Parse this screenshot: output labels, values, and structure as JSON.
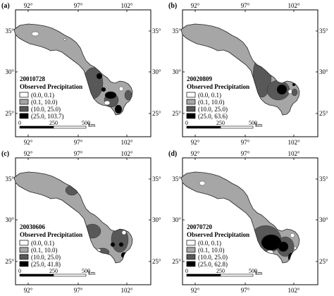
{
  "figure": {
    "panels": [
      {
        "letter": "(a)",
        "date": "20010728",
        "legend_title": "Observed Precipitation",
        "classes": [
          "(0.0, 0.1)",
          "(0.1, 10.0)",
          "(10.0, 25.0)",
          "(25.0, 103.7)"
        ],
        "class_colors": [
          "#ffffff",
          "#a6a6a6",
          "#585858",
          "#000000"
        ],
        "scale_labels": [
          "0",
          "250",
          "500"
        ],
        "scale_unit": "km",
        "lon_ticks": [
          "92°",
          "97°",
          "102°"
        ],
        "lat_ticks": [
          "35°",
          "30°",
          "25°"
        ],
        "background_class": 1,
        "patches": [
          {
            "c": 0,
            "x": 50,
            "y": 48,
            "rx": 5,
            "ry": 3
          },
          {
            "c": 0,
            "x": 92,
            "y": 56,
            "rx": 1.5,
            "ry": 1.5
          },
          {
            "c": 2,
            "x": 132,
            "y": 118,
            "rx": 14,
            "ry": 22
          },
          {
            "c": 2,
            "x": 158,
            "y": 142,
            "rx": 10,
            "ry": 10
          },
          {
            "c": 3,
            "x": 141,
            "y": 108,
            "rx": 4,
            "ry": 4
          },
          {
            "c": 3,
            "x": 157,
            "y": 135,
            "rx": 8,
            "ry": 5
          },
          {
            "c": 3,
            "x": 147,
            "y": 127,
            "rx": 3,
            "ry": 3
          },
          {
            "c": 3,
            "x": 168,
            "y": 155,
            "rx": 5,
            "ry": 6
          },
          {
            "c": 0,
            "x": 152,
            "y": 146,
            "rx": 4,
            "ry": 3
          },
          {
            "c": 0,
            "x": 172,
            "y": 126,
            "rx": 3,
            "ry": 3
          },
          {
            "c": 2,
            "x": 182,
            "y": 135,
            "rx": 5,
            "ry": 7
          }
        ]
      },
      {
        "letter": "(b)",
        "date": "20020809",
        "legend_title": "Observed Precipitation",
        "classes": [
          "(0.0, 0.1)",
          "(0.1, 10.0)",
          "(10.0, 25.0)",
          "(25.0, 63.6)"
        ],
        "class_colors": [
          "#ffffff",
          "#a6a6a6",
          "#585858",
          "#000000"
        ],
        "scale_labels": [
          "0",
          "250",
          "500"
        ],
        "scale_unit": "km",
        "lon_ticks": [
          "92°",
          "97°",
          "102°"
        ],
        "lat_ticks": [
          "35°",
          "30°",
          "25°"
        ],
        "background_class": 1,
        "patches": [
          {
            "c": 2,
            "x": 135,
            "y": 108,
            "rx": 13,
            "ry": 30
          },
          {
            "c": 2,
            "x": 158,
            "y": 128,
            "rx": 16,
            "ry": 14
          },
          {
            "c": 3,
            "x": 163,
            "y": 127,
            "rx": 7,
            "ry": 7
          },
          {
            "c": 3,
            "x": 180,
            "y": 120,
            "rx": 2,
            "ry": 2
          },
          {
            "c": 0,
            "x": 175,
            "y": 130,
            "rx": 3,
            "ry": 3
          },
          {
            "c": 2,
            "x": 181,
            "y": 131,
            "rx": 4,
            "ry": 5
          }
        ]
      },
      {
        "letter": "(c)",
        "date": "20030606",
        "legend_title": "Observed Precipitation",
        "classes": [
          "(0.0, 0.1)",
          "(0.1, 10.0)",
          "(10.0, 25.0)",
          "(25.0, 41.8)"
        ],
        "class_colors": [
          "#ffffff",
          "#a6a6a6",
          "#585858",
          "#000000"
        ],
        "scale_labels": [
          "0",
          "250",
          "500"
        ],
        "scale_unit": "km",
        "lon_ticks": [
          "92°",
          "97°",
          "102°"
        ],
        "lat_ticks": [
          "35°",
          "30°",
          "25°"
        ],
        "background_class": 1,
        "patches": [
          {
            "c": 2,
            "x": 102,
            "y": 60,
            "rx": 9,
            "ry": 7
          },
          {
            "c": 2,
            "x": 131,
            "y": 118,
            "rx": 12,
            "ry": 10
          },
          {
            "c": 2,
            "x": 170,
            "y": 130,
            "rx": 12,
            "ry": 18
          },
          {
            "c": 2,
            "x": 145,
            "y": 148,
            "rx": 10,
            "ry": 6
          },
          {
            "c": 3,
            "x": 160,
            "y": 137,
            "rx": 3,
            "ry": 3
          },
          {
            "c": 3,
            "x": 172,
            "y": 137,
            "rx": 3,
            "ry": 3
          },
          {
            "c": 3,
            "x": 176,
            "y": 152,
            "rx": 4,
            "ry": 4
          },
          {
            "c": 0,
            "x": 176,
            "y": 120,
            "rx": 3,
            "ry": 3
          },
          {
            "c": 0,
            "x": 140,
            "y": 145,
            "rx": 3,
            "ry": 2
          }
        ]
      },
      {
        "letter": "(d)",
        "date": "20070720",
        "legend_title": "Observed Precipitation",
        "classes": [
          "(0.0, 0.1)",
          "(0.1, 10.0)",
          "(10.0, 25.0)",
          "(25.0, 62.8)"
        ],
        "class_colors": [
          "#ffffff",
          "#a6a6a6",
          "#585858",
          "#000000"
        ],
        "scale_labels": [
          "0",
          "250",
          "500"
        ],
        "scale_unit": "km",
        "lon_ticks": [
          "92°",
          "97°",
          "102°"
        ],
        "lat_ticks": [
          "35°",
          "30°",
          "25°"
        ],
        "background_class": 1,
        "patches": [
          {
            "c": 0,
            "x": 50,
            "y": 50,
            "rx": 4,
            "ry": 3
          },
          {
            "c": 2,
            "x": 140,
            "y": 130,
            "rx": 22,
            "ry": 20
          },
          {
            "c": 2,
            "x": 168,
            "y": 140,
            "rx": 12,
            "ry": 14
          },
          {
            "c": 3,
            "x": 148,
            "y": 134,
            "rx": 14,
            "ry": 11
          },
          {
            "c": 3,
            "x": 165,
            "y": 140,
            "rx": 7,
            "ry": 7
          },
          {
            "c": 3,
            "x": 176,
            "y": 155,
            "rx": 4,
            "ry": 6
          },
          {
            "c": 0,
            "x": 146,
            "y": 148,
            "rx": 5,
            "ry": 3
          },
          {
            "c": 0,
            "x": 178,
            "y": 124,
            "rx": 3,
            "ry": 3
          },
          {
            "c": 0,
            "x": 182,
            "y": 142,
            "rx": 2,
            "ry": 2
          }
        ]
      }
    ]
  }
}
